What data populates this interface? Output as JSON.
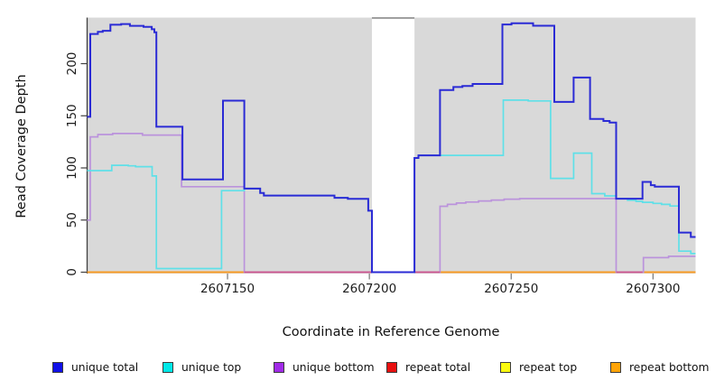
{
  "chart_data": {
    "type": "line",
    "step": true,
    "title": "",
    "xlabel": "Coordinate in Reference Genome",
    "ylabel": "Read Coverage Depth",
    "xlim": [
      2607100.5,
      2607315
    ],
    "ylim": [
      0,
      244
    ],
    "x_ticks": [
      2607150,
      2607200,
      2607250,
      2607300
    ],
    "y_ticks": [
      0,
      50,
      100,
      150,
      200
    ],
    "grid": false,
    "legend_position": "bottom",
    "panel_background": "#d9d9d9",
    "gap_region": {
      "x_from": 2607200.9,
      "x_to": 2607215.9,
      "fill": "#ffffff",
      "top_border": "#8a8a8a"
    },
    "zero_overlay_segments": [
      {
        "x_from": 2607155.9,
        "x_to": 2607200.9,
        "color": "#cc5590"
      },
      {
        "x_from": 2607215.9,
        "x_to": 2607224.9,
        "color": "#cc5590"
      },
      {
        "x_from": 2607287.0,
        "x_to": 2607296.3,
        "color": "#cc5590"
      }
    ],
    "series": [
      {
        "name": "unique total",
        "legend_color": "#1010e8",
        "line_color": "#2b2bd5",
        "line_width": 2.0,
        "points": [
          [
            2607100.5,
            149
          ],
          [
            2607101.6,
            228.5
          ],
          [
            2607104.3,
            230.5
          ],
          [
            2607106,
            231.5
          ],
          [
            2607108.7,
            237.3
          ],
          [
            2607112.5,
            238
          ],
          [
            2607115.6,
            236.3
          ],
          [
            2607120.4,
            235.2
          ],
          [
            2607123.3,
            233
          ],
          [
            2607124.2,
            230
          ],
          [
            2607124.9,
            139.5
          ],
          [
            2607134.1,
            89
          ],
          [
            2607148.4,
            164.5
          ],
          [
            2607155.9,
            80.2
          ],
          [
            2607161.5,
            76
          ],
          [
            2607162.8,
            73.5
          ],
          [
            2607187.7,
            71.3
          ],
          [
            2607192.4,
            70.3
          ],
          [
            2607199.6,
            59
          ],
          [
            2607200.9,
            0
          ],
          [
            2607215.9,
            109.5
          ],
          [
            2607217.3,
            112
          ],
          [
            2607224.9,
            174.7
          ],
          [
            2607229.6,
            177.6
          ],
          [
            2607232.8,
            178.5
          ],
          [
            2607236.4,
            180.5
          ],
          [
            2607246.9,
            237.6
          ],
          [
            2607250.1,
            238.8
          ],
          [
            2607257.7,
            236.4
          ],
          [
            2607265.2,
            163.3
          ],
          [
            2607272,
            186.7
          ],
          [
            2607277.8,
            147
          ],
          [
            2607282.5,
            145
          ],
          [
            2607284.7,
            143.5
          ],
          [
            2607287,
            70.5
          ],
          [
            2607296.3,
            86.6
          ],
          [
            2607299.2,
            83.5
          ],
          [
            2607300.6,
            82
          ],
          [
            2607309.1,
            38
          ],
          [
            2607313.3,
            33.8
          ]
        ]
      },
      {
        "name": "unique top",
        "legend_color": "#00e8e8",
        "line_color": "#5fe0e8",
        "line_width": 1.7,
        "points": [
          [
            2607100.5,
            97.4
          ],
          [
            2607109.2,
            102.5
          ],
          [
            2607115,
            102
          ],
          [
            2607117.6,
            101.2
          ],
          [
            2607123.4,
            92.3
          ],
          [
            2607124.9,
            3.5
          ],
          [
            2607147.9,
            78.2
          ],
          [
            2607155.9,
            80.2
          ],
          [
            2607161.5,
            76
          ],
          [
            2607162.8,
            73.5
          ],
          [
            2607187.7,
            71.3
          ],
          [
            2607192.4,
            70.3
          ],
          [
            2607199.6,
            59
          ],
          [
            2607200.9,
            0
          ],
          [
            2607215.9,
            109.5
          ],
          [
            2607217.3,
            112
          ],
          [
            2607247.2,
            165
          ],
          [
            2607256,
            164.2
          ],
          [
            2607263.9,
            90
          ],
          [
            2607272,
            114.2
          ],
          [
            2607278.4,
            75.3
          ],
          [
            2607283,
            73.2
          ],
          [
            2607287,
            70.5
          ],
          [
            2607291,
            69
          ],
          [
            2607294,
            68
          ],
          [
            2607296.3,
            67
          ],
          [
            2607300,
            66
          ],
          [
            2607303,
            65
          ],
          [
            2607306,
            63.5
          ],
          [
            2607309.1,
            20.2
          ],
          [
            2607313.3,
            17.8
          ]
        ]
      },
      {
        "name": "unique bottom",
        "legend_color": "#a12be8",
        "line_color": "#bb93dc",
        "line_width": 1.7,
        "points": [
          [
            2607100.5,
            50
          ],
          [
            2607101.6,
            129.8
          ],
          [
            2607104.3,
            132
          ],
          [
            2607109.5,
            133
          ],
          [
            2607120,
            131.5
          ],
          [
            2607133.8,
            82
          ],
          [
            2607155.9,
            0
          ],
          [
            2607224.9,
            63.2
          ],
          [
            2607227.5,
            65
          ],
          [
            2607230.7,
            66.3
          ],
          [
            2607234,
            67.3
          ],
          [
            2607238.5,
            68.3
          ],
          [
            2607243,
            69.2
          ],
          [
            2607247.5,
            70
          ],
          [
            2607253,
            70.6
          ],
          [
            2607287,
            0
          ],
          [
            2607296.6,
            13.9
          ],
          [
            2607305.5,
            15.2
          ]
        ]
      },
      {
        "name": "repeat total",
        "legend_color": "#e81010",
        "line_color": "#cc2222",
        "line_width": 1.7,
        "points": [
          [
            2607100.5,
            0
          ]
        ]
      },
      {
        "name": "repeat top",
        "legend_color": "#fafa10",
        "line_color": "#f0f000",
        "line_width": 1.7,
        "points": [
          [
            2607100.5,
            0
          ]
        ]
      },
      {
        "name": "repeat bottom",
        "legend_color": "#ffa408",
        "line_color": "#f89b25",
        "line_width": 2.0,
        "points": [
          [
            2607100.5,
            0
          ]
        ]
      }
    ]
  }
}
